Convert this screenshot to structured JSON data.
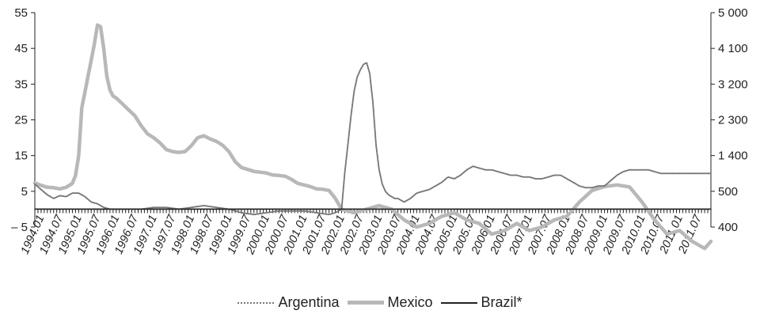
{
  "chart_data": {
    "type": "line",
    "title": "",
    "left_axis": {
      "ticks": [
        "55",
        "45",
        "35",
        "25",
        "15",
        "5",
        "– 5"
      ],
      "ylim": [
        -5,
        55
      ]
    },
    "right_axis": {
      "ticks": [
        "5 000",
        "4 100",
        "3 200",
        "2 300",
        "1 400",
        "500",
        "400"
      ],
      "scale": "piecewise: 400–500 between lowest ticks, 900 per tick above"
    },
    "x_labels": [
      "1994.01",
      "1994.07",
      "1995.01",
      "1995.07",
      "1996.01",
      "1996.07",
      "1997.01",
      "1997.07",
      "1998.01",
      "1998.07",
      "1999.01",
      "1999.07",
      "2000.01",
      "2000.07",
      "2001.01",
      "2001.07",
      "2002.01",
      "2002.07",
      "2003.01",
      "2003.07",
      "2004.01",
      "2004.07",
      "2005.01",
      "2005.07",
      "2006.01",
      "2006.07",
      "2007.01",
      "2007.07",
      "2008.01",
      "2008.07",
      "2009.01",
      "2009.07",
      "2010.01",
      "2010.07",
      "2011.01",
      "2011.07"
    ],
    "series": [
      {
        "name": "Argentina",
        "axis": "left",
        "style": "dotted",
        "color": "#777777",
        "x": [
          "1993.11",
          "1994.01",
          "1994.03",
          "1994.05",
          "1994.07",
          "1994.09",
          "1994.11",
          "1995.01",
          "1995.03",
          "1995.05",
          "1995.07",
          "1995.09",
          "1995.11",
          "1996.01",
          "1996.05",
          "1996.09",
          "1997.01",
          "1997.05",
          "1997.09",
          "1998.01",
          "1998.05",
          "1998.09",
          "1999.01",
          "1999.05",
          "1999.09",
          "2000.01",
          "2000.05",
          "2000.09",
          "2001.01",
          "2001.05",
          "2001.09",
          "2001.11",
          "2002.01",
          "2002.02",
          "2002.03",
          "2002.04",
          "2002.05",
          "2002.06",
          "2002.07",
          "2002.08",
          "2002.09",
          "2002.10",
          "2002.11",
          "2002.12",
          "2003.01",
          "2003.02",
          "2003.03",
          "2003.04",
          "2003.05",
          "2003.06",
          "2003.07",
          "2003.09",
          "2003.11",
          "2004.01",
          "2004.03",
          "2004.05",
          "2004.07",
          "2004.09",
          "2004.11",
          "2005.01",
          "2005.03",
          "2005.05",
          "2005.07",
          "2005.09",
          "2005.11",
          "2006.01",
          "2006.03",
          "2006.05",
          "2006.07",
          "2006.09",
          "2006.11",
          "2007.01",
          "2007.03",
          "2007.05",
          "2007.07",
          "2007.09",
          "2007.11",
          "2008.01",
          "2008.03",
          "2008.05",
          "2008.07",
          "2008.09",
          "2008.11",
          "2009.01",
          "2009.03",
          "2009.05",
          "2009.07",
          "2009.09",
          "2009.11",
          "2010.01",
          "2010.03",
          "2010.05",
          "2010.07",
          "2010.09",
          "2010.11",
          "2011.01",
          "2011.03",
          "2011.05",
          "2011.07",
          "2011.09",
          "2011.11"
        ],
        "values": [
          7,
          5.5,
          4,
          3,
          3.8,
          3.5,
          4.5,
          4.5,
          3.5,
          2,
          1.5,
          0.5,
          0,
          0,
          0,
          0,
          0.5,
          0.5,
          0,
          0.5,
          1,
          0.5,
          0,
          -1,
          -1.5,
          -1,
          -0.5,
          -0.5,
          -0.5,
          -1,
          -1.5,
          -1,
          0,
          10,
          18,
          26,
          33,
          37,
          39,
          40.5,
          41,
          38,
          30,
          18,
          11,
          7,
          5,
          4,
          3.5,
          3,
          3,
          2,
          3,
          4.5,
          5,
          5.5,
          6.5,
          7.5,
          9,
          8.5,
          9.5,
          11,
          12,
          11.5,
          11,
          11,
          10.5,
          10,
          9.5,
          9.5,
          9,
          9,
          8.5,
          8.5,
          9,
          9.5,
          9.5,
          8.5,
          7.5,
          6.5,
          6,
          6,
          6.5,
          6.5,
          8,
          9.5,
          10.5,
          11,
          11,
          11,
          11,
          10.5,
          10,
          10,
          10,
          10,
          10,
          10,
          10,
          10,
          10
        ]
      },
      {
        "name": "Mexico",
        "axis": "right",
        "style": "thick",
        "color": "#b8b8b8",
        "x": [
          "1993.11",
          "1994.01",
          "1994.03",
          "1994.05",
          "1994.07",
          "1994.09",
          "1994.11",
          "1994.12",
          "1995.01",
          "1995.02",
          "1995.03",
          "1995.04",
          "1995.05",
          "1995.06",
          "1995.07",
          "1995.08",
          "1995.09",
          "1995.10",
          "1995.11",
          "1995.12",
          "1996.01",
          "1996.03",
          "1996.05",
          "1996.07",
          "1996.09",
          "1996.11",
          "1997.01",
          "1997.03",
          "1997.05",
          "1997.07",
          "1997.09",
          "1997.11",
          "1998.01",
          "1998.03",
          "1998.05",
          "1998.07",
          "1998.09",
          "1998.11",
          "1999.01",
          "1999.03",
          "1999.05",
          "1999.07",
          "1999.09",
          "1999.11",
          "2000.01",
          "2000.03",
          "2000.05",
          "2000.07",
          "2000.09",
          "2000.11",
          "2001.01",
          "2001.03",
          "2001.05",
          "2001.07",
          "2001.09",
          "2001.11",
          "2002.01",
          "2002.05",
          "2002.09",
          "2003.01",
          "2003.05",
          "2003.09",
          "2004.01",
          "2004.05",
          "2004.09",
          "2005.01",
          "2005.05",
          "2005.09",
          "2006.01",
          "2006.05",
          "2006.09",
          "2007.01",
          "2007.05",
          "2007.09",
          "2008.01",
          "2008.05",
          "2008.09",
          "2009.01",
          "2009.05",
          "2009.09",
          "2010.01",
          "2010.05",
          "2010.09",
          "2011.01",
          "2011.05",
          "2011.09",
          "2011.11"
        ],
        "values": [
          710,
          650,
          600,
          590,
          560,
          600,
          700,
          900,
          1400,
          2600,
          3000,
          3400,
          3800,
          4200,
          4690,
          4650,
          4100,
          3400,
          3050,
          2900,
          2850,
          2700,
          2550,
          2400,
          2150,
          1950,
          1850,
          1720,
          1550,
          1500,
          1480,
          1500,
          1650,
          1850,
          1900,
          1820,
          1760,
          1660,
          1500,
          1250,
          1100,
          1050,
          1000,
          980,
          960,
          910,
          900,
          880,
          800,
          700,
          660,
          620,
          560,
          550,
          520,
          480,
          450,
          440,
          450,
          460,
          450,
          420,
          400,
          410,
          430,
          440,
          420,
          410,
          380,
          390,
          410,
          390,
          400,
          420,
          430,
          470,
          520,
          620,
          660,
          610,
          470,
          420,
          380,
          390,
          360,
          340,
          360
        ]
      },
      {
        "name": "Brazil*",
        "axis": "left",
        "style": "solid",
        "color": "#222222",
        "x": [
          "1993.11",
          "2011.11"
        ],
        "values": [
          0,
          0
        ]
      }
    ]
  }
}
